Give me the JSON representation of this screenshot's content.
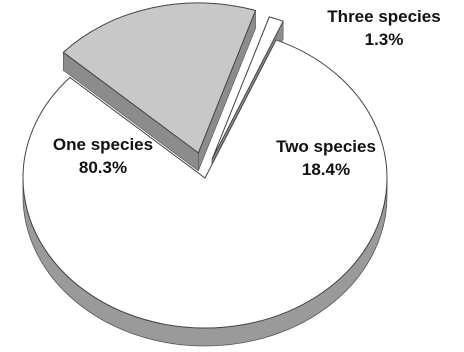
{
  "chart_data": {
    "type": "pie",
    "style": "3d-exploded",
    "slices": [
      {
        "label": "One species",
        "value": 80.3,
        "display": "80.3%",
        "color": "#ffffff"
      },
      {
        "label": "Two species",
        "value": 18.4,
        "display": "18.4%",
        "color": "#c8c8c8"
      },
      {
        "label": "Three species",
        "value": 1.3,
        "display": "1.3%",
        "color": "#ffffff"
      }
    ],
    "legend": "none"
  }
}
